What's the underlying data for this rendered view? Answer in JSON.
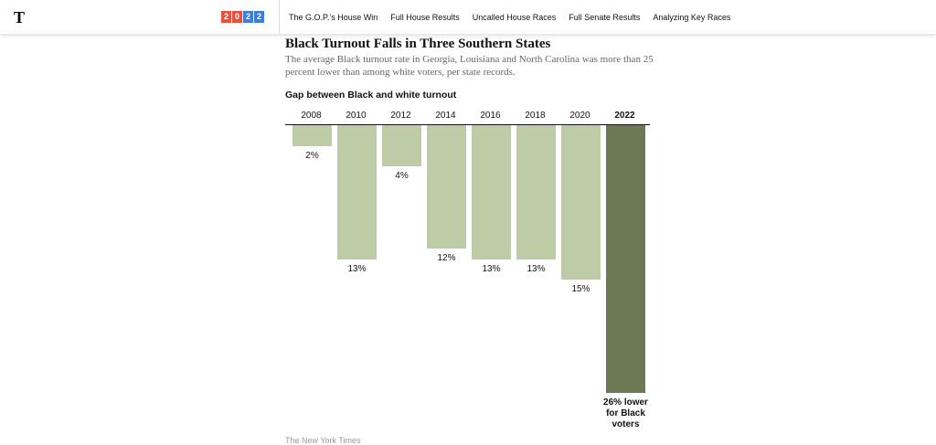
{
  "nav": {
    "badge": "2022",
    "links": [
      "The G.O.P.’s House Win",
      "Full House Results",
      "Uncalled House Races",
      "Full Senate Results",
      "Analyzing Key Races"
    ]
  },
  "chart_data": {
    "type": "bar",
    "title": "Black Turnout Falls in Three Southern States",
    "subtitle": "The average Black turnout rate in Georgia, Louisiana and North Carolina was more than 25 percent lower than among white voters, per state records.",
    "y_label": "Gap between Black and white turnout",
    "categories": [
      "2008",
      "2010",
      "2012",
      "2014",
      "2016",
      "2018",
      "2020",
      "2022"
    ],
    "values": [
      2,
      13,
      4,
      12,
      13,
      13,
      15,
      26
    ],
    "value_labels": [
      "2%",
      "13%",
      "4%",
      "12%",
      "13%",
      "13%",
      "15%",
      "26% lower for Black voters"
    ],
    "colors": [
      "#bdcca6",
      "#bdcca6",
      "#bdcca6",
      "#bdcca6",
      "#bdcca6",
      "#bdcca6",
      "#bdcca6",
      "#6b7a55"
    ],
    "ylim": [
      0,
      26
    ],
    "source": "The New York Times"
  }
}
